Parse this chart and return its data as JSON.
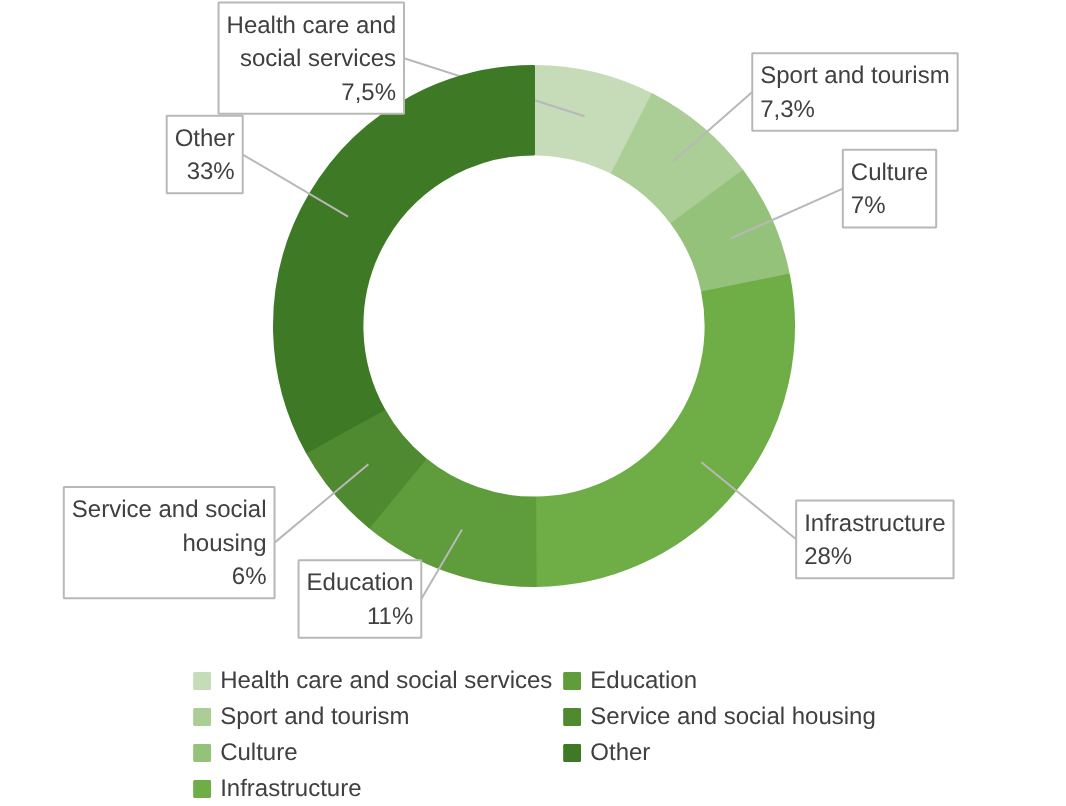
{
  "chart_data": {
    "type": "donut",
    "categories": [
      "Health care and social services",
      "Sport and tourism",
      "Culture",
      "Infrastructure",
      "Education",
      "Service and social housing",
      "Other"
    ],
    "values": [
      7.5,
      7.3,
      7,
      28,
      11,
      6,
      33
    ],
    "value_labels": [
      "7,5%",
      "7,3%",
      "7%",
      "28%",
      "11%",
      "6%",
      "33%"
    ],
    "colors": [
      "#c6dcb8",
      "#abcd96",
      "#94c27a",
      "#6fad46",
      "#5f9c3b",
      "#4f8a31",
      "#3e7a25"
    ],
    "legend": "bottom"
  }
}
